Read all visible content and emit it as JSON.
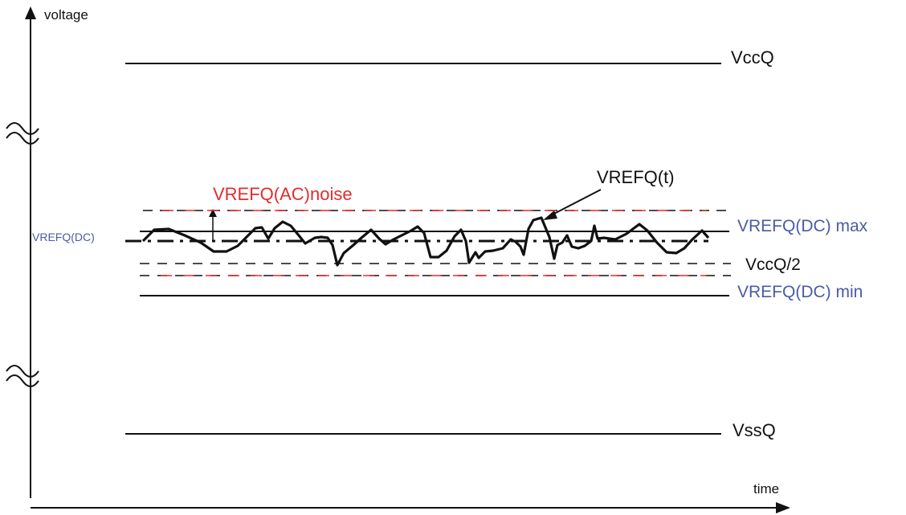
{
  "axes": {
    "y_label": "voltage",
    "x_label": "time"
  },
  "labels": {
    "vccq": "VccQ",
    "vref_t": "VREFQ(t)",
    "ac_noise": "VREFQ(AC)noise",
    "vref_dc": "VREFQ(DC)",
    "vref_dc_max": "VREFQ(DC) max",
    "vccq_half": "VccQ/2",
    "vref_dc_min": "VREFQ(DC) min",
    "vssq": "VssQ"
  },
  "colors": {
    "line": "#111111",
    "dc_label": "#4a5ba6",
    "noise": "#e02d2d"
  }
}
